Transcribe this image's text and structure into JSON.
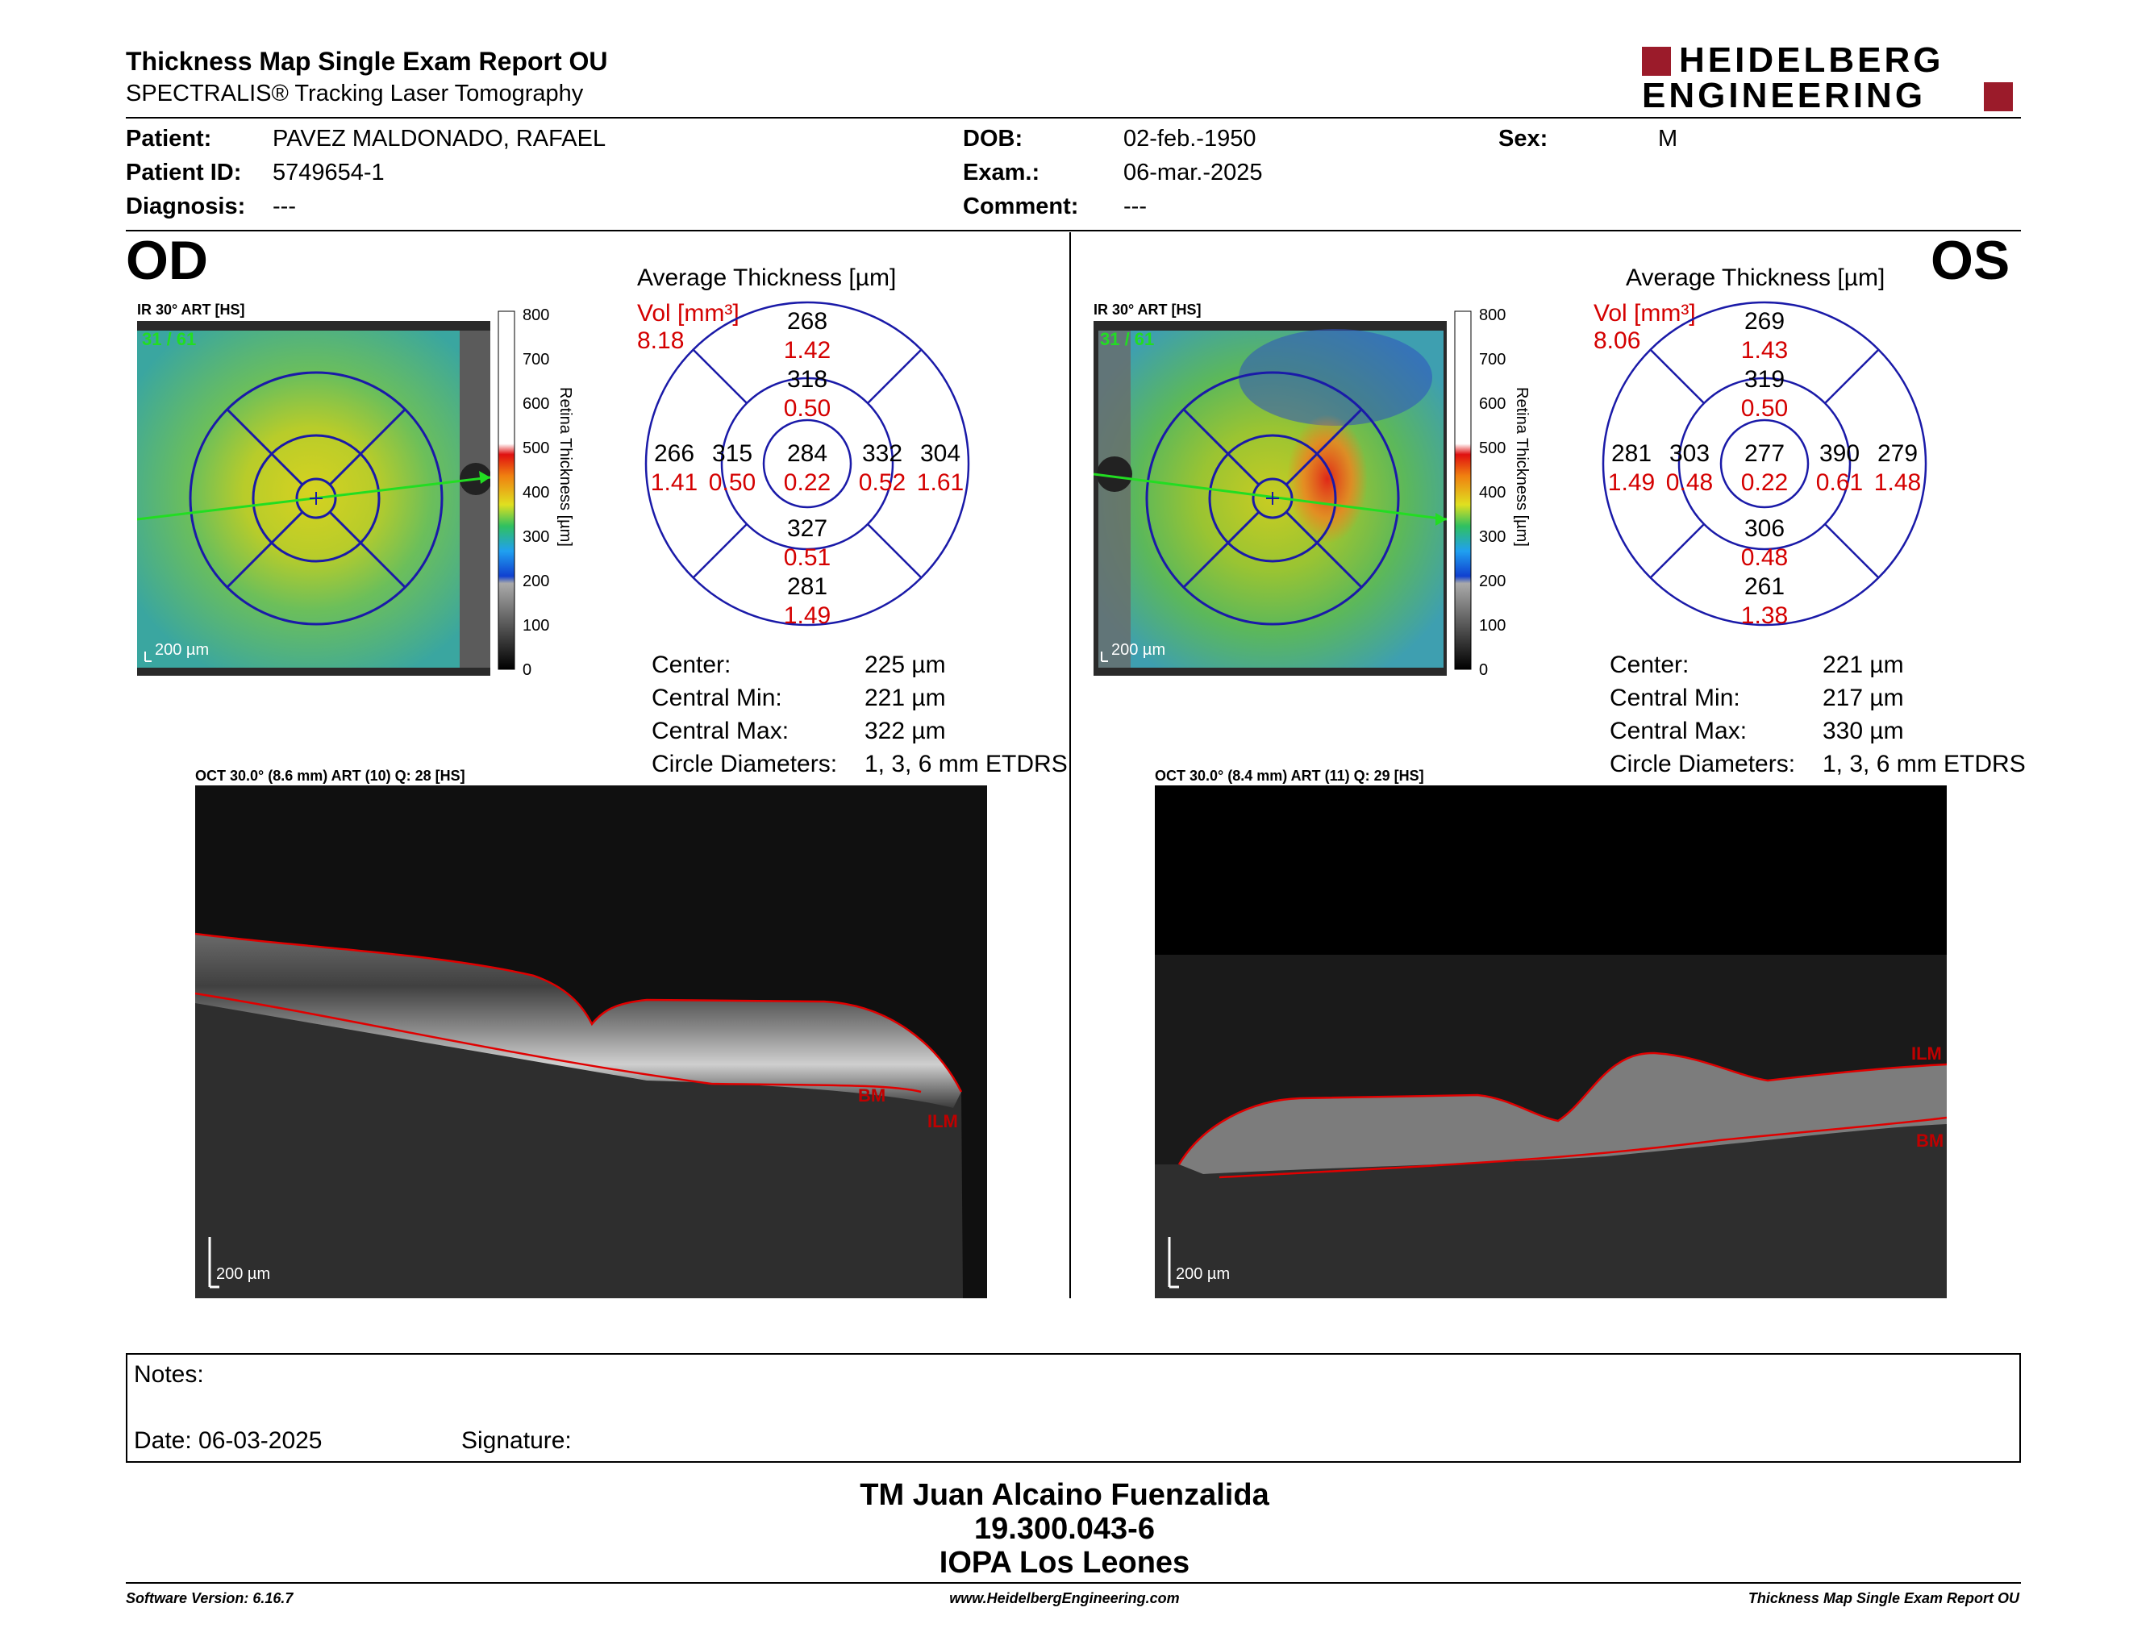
{
  "header": {
    "title": "Thickness Map Single Exam Report OU",
    "subtitle": "SPECTRALIS® Tracking Laser Tomography",
    "logo_line1": "HEIDELBERG",
    "logo_line2": "ENGINEERING"
  },
  "patient": {
    "patient_label": "Patient:",
    "patient_value": "PAVEZ MALDONADO, RAFAEL",
    "id_label": "Patient ID:",
    "id_value": "5749654-1",
    "diagnosis_label": "Diagnosis:",
    "diagnosis_value": "---",
    "dob_label": "DOB:",
    "dob_value": "02-feb.-1950",
    "exam_label": "Exam.:",
    "exam_value": "06-mar.-2025",
    "comment_label": "Comment:",
    "comment_value": "---",
    "sex_label": "Sex:",
    "sex_value": "M"
  },
  "colorbar": {
    "ticks": [
      "800",
      "700",
      "600",
      "500",
      "400",
      "300",
      "200",
      "100",
      "0"
    ],
    "label": "Retina Thickness [µm]"
  },
  "od": {
    "eye": "OD",
    "fundus_caption": "IR 30° ART [HS]",
    "frames": "31 / 61",
    "scale": "200 µm",
    "avg_title": "Average Thickness [µm]",
    "vol_label": "Vol [mm³]",
    "total_vol": "8.18",
    "sectors": {
      "outer_sup": {
        "t": "268",
        "v": "1.42"
      },
      "inner_sup": {
        "t": "318",
        "v": "0.50"
      },
      "outer_temp": {
        "t": "266",
        "v": "1.41"
      },
      "inner_temp": {
        "t": "315",
        "v": "0.50"
      },
      "center": {
        "t": "284",
        "v": "0.22"
      },
      "inner_nas": {
        "t": "332",
        "v": "0.52"
      },
      "outer_nas": {
        "t": "304",
        "v": "1.61"
      },
      "inner_inf": {
        "t": "327",
        "v": "0.51"
      },
      "outer_inf": {
        "t": "281",
        "v": "1.49"
      }
    },
    "stats": [
      {
        "label": "Center:",
        "value": "225 µm"
      },
      {
        "label": "Central Min:",
        "value": "221 µm"
      },
      {
        "label": "Central Max:",
        "value": "322 µm"
      },
      {
        "label": "Circle Diameters:",
        "value": "1, 3, 6 mm ETDRS"
      }
    ],
    "oct_caption": "OCT 30.0° (8.6 mm) ART (10) Q: 28 [HS]",
    "oct_scale": "200 µm",
    "bm": "BM",
    "ilm": "ILM"
  },
  "os": {
    "eye": "OS",
    "fundus_caption": "IR 30° ART [HS]",
    "frames": "31 / 61",
    "scale": "200 µm",
    "avg_title": "Average Thickness [µm]",
    "vol_label": "Vol [mm³]",
    "total_vol": "8.06",
    "sectors": {
      "outer_sup": {
        "t": "269",
        "v": "1.43"
      },
      "inner_sup": {
        "t": "319",
        "v": "0.50"
      },
      "outer_temp": {
        "t": "281",
        "v": "1.49"
      },
      "inner_temp": {
        "t": "303",
        "v": "0.48"
      },
      "center": {
        "t": "277",
        "v": "0.22"
      },
      "inner_nas": {
        "t": "390",
        "v": "0.61"
      },
      "outer_nas": {
        "t": "279",
        "v": "1.48"
      },
      "inner_inf": {
        "t": "306",
        "v": "0.48"
      },
      "outer_inf": {
        "t": "261",
        "v": "1.38"
      }
    },
    "stats": [
      {
        "label": "Center:",
        "value": "221 µm"
      },
      {
        "label": "Central Min:",
        "value": "217 µm"
      },
      {
        "label": "Central Max:",
        "value": "330 µm"
      },
      {
        "label": "Circle Diameters:",
        "value": "1, 3, 6 mm ETDRS"
      }
    ],
    "oct_caption": "OCT 30.0° (8.4 mm) ART (11) Q: 29 [HS]",
    "oct_scale": "200 µm",
    "bm": "BM",
    "ilm": "ILM"
  },
  "notes": {
    "notes_label": "Notes:",
    "date_label": "Date: 06-03-2025",
    "signature_label": "Signature:"
  },
  "signer": {
    "name": "TM Juan Alcaino Fuenzalida",
    "rut": "19.300.043-6",
    "clinic": "IOPA Los Leones"
  },
  "footer": {
    "software": "Software Version: 6.16.7",
    "website": "www.HeidelbergEngineering.com",
    "report": "Thickness Map Single Exam Report OU"
  },
  "colors": {
    "accent_red": "#d40000",
    "logo_red": "#9b1b2a",
    "grid_blue": "#1a1aa8",
    "scan_green": "#22dd22"
  }
}
